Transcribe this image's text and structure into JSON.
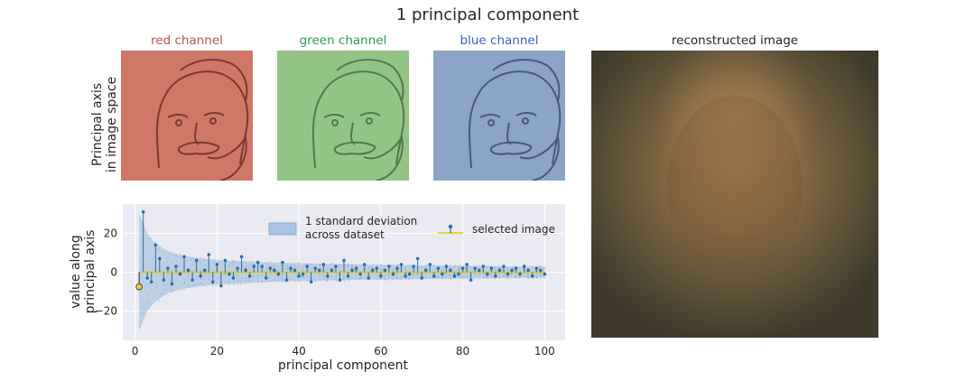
{
  "figure": {
    "title": "1 principal component",
    "channels": [
      {
        "label": "red channel",
        "color": "#c44e52",
        "tint": "#d07868",
        "shade": "#7a3a30"
      },
      {
        "label": "green channel",
        "color": "#2e9b5a",
        "tint": "#92c486",
        "shade": "#4f7a4c"
      },
      {
        "label": "blue channel",
        "color": "#3a5fcd",
        "tint": "#8ca4c8",
        "shade": "#4a5a78"
      }
    ],
    "top_ylabel": [
      "Principal axis",
      "in image space"
    ],
    "reconstructed_title": "reconstructed image"
  },
  "chart_data": {
    "type": "scatter",
    "xlabel": "principal component",
    "ylabel": [
      "value along",
      "principal axis"
    ],
    "xlim": [
      -3,
      105
    ],
    "ylim": [
      -35,
      35
    ],
    "xticks": [
      0,
      20,
      40,
      60,
      80,
      100
    ],
    "yticks": [
      -20,
      0,
      20
    ],
    "grid": true,
    "legend": {
      "placement": "upper",
      "entries": [
        "1 standard deviation",
        "across dataset",
        "selected image"
      ]
    },
    "highlight": {
      "component": 1,
      "value": -7.5
    },
    "selected_values": [
      -7.5,
      31,
      -3,
      -5,
      14,
      7,
      -4,
      2,
      -6,
      3,
      -1,
      8,
      1,
      -4,
      6,
      -2,
      1,
      9,
      -5,
      4,
      -7,
      6,
      -1,
      -3,
      2,
      8,
      1,
      -2,
      3,
      5,
      3,
      -3,
      2,
      1,
      -1,
      5,
      -4,
      2,
      1,
      -2,
      -1,
      3,
      -5,
      2,
      1,
      4,
      -2,
      1,
      3,
      -4,
      6,
      -2,
      1,
      2,
      -1,
      4,
      -3,
      1,
      2,
      -2,
      1,
      3,
      -1,
      2,
      4,
      -2,
      -1,
      3,
      7,
      -3,
      1,
      4,
      -2,
      2,
      -1,
      3,
      1,
      -2,
      -1,
      2,
      4,
      -4,
      2,
      1,
      3,
      -1,
      2,
      -2,
      1,
      3,
      -1,
      1,
      2,
      -1,
      3,
      1,
      -2,
      2,
      1,
      -1
    ],
    "std_dev": [
      30,
      25,
      20,
      17,
      15,
      13.5,
      12,
      11,
      10,
      9.5,
      9,
      8.5,
      8,
      7.8,
      7.5,
      7.2,
      7,
      6.8,
      6.6,
      6.4,
      6.2,
      6.1,
      6,
      5.9,
      5.8,
      5.7,
      5.6,
      5.5,
      5.4,
      5.3,
      5.2,
      5.1,
      5,
      4.95,
      4.9,
      4.85,
      4.8,
      4.75,
      4.7,
      4.65,
      4.6,
      4.55,
      4.5,
      4.45,
      4.4,
      4.35,
      4.3,
      4.25,
      4.2,
      4.15,
      4.1,
      4.05,
      4,
      3.97,
      3.94,
      3.91,
      3.88,
      3.85,
      3.82,
      3.79,
      3.76,
      3.73,
      3.7,
      3.67,
      3.64,
      3.61,
      3.58,
      3.55,
      3.52,
      3.49,
      3.46,
      3.43,
      3.4,
      3.38,
      3.36,
      3.34,
      3.32,
      3.3,
      3.28,
      3.26,
      3.24,
      3.22,
      3.2,
      3.18,
      3.16,
      3.14,
      3.12,
      3.1,
      3.08,
      3.06,
      3.04,
      3.02,
      3,
      2.98,
      2.96,
      2.94,
      2.92,
      2.9,
      2.88,
      2.86
    ]
  }
}
